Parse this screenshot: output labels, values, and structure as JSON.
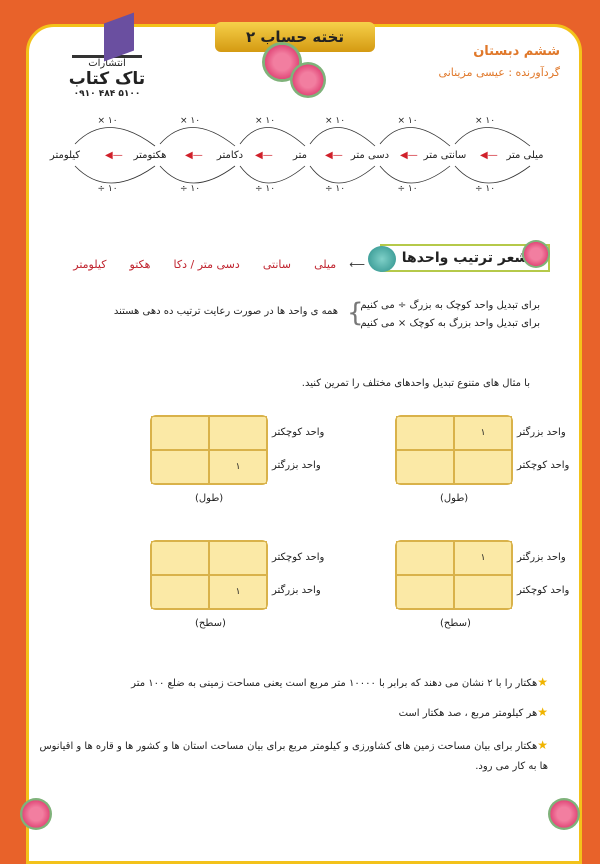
{
  "header": {
    "publisher_label": "انتشارات",
    "publisher_name": "تاک کتاب",
    "phone": "۰۹۱۰ ۴۸۴ ۵۱۰۰",
    "title": "تخته حساب ۲",
    "grade": "ششم دبستان",
    "author": "گردآورنده : عیسی مزینانی"
  },
  "chain": {
    "units": [
      "میلی متر",
      "سانتی متر",
      "دسی متر",
      "متر",
      "دکامتر",
      "هکتومتر",
      "کیلومتر"
    ],
    "multiply_label": "× ۱۰",
    "divide_label": "÷ ۱۰"
  },
  "poem": {
    "title": "شعر ترتیب واحدها",
    "items": [
      "میلی",
      "سانتی",
      "دسی متر / دکا",
      "هکتو",
      "کیلومتر"
    ]
  },
  "rules": {
    "line1": "برای تبدیل واحد کوچک به بزرگ ÷ می کنیم",
    "line2": "برای تبدیل واحد بزرگ به کوچک × می کنیم",
    "note": "همه ی واحد ها در صورت رعایت ترتیب ده دهی هستند"
  },
  "instruction": "با مثال های متنوع تبدیل واحدهای مختلف را تمرین کنید.",
  "tables": [
    {
      "top": "واحد بزرگتر",
      "bottom": "واحد کوچکتر",
      "value": "۱",
      "value_row": "top",
      "caption": "(طول)"
    },
    {
      "top": "واحد کوچکتر",
      "bottom": "واحد بزرگتر",
      "value": "۱",
      "value_row": "bottom",
      "caption": "(طول)"
    },
    {
      "top": "واحد بزرگتر",
      "bottom": "واحد کوچکتر",
      "value": "۱",
      "value_row": "top",
      "caption": "(سطح)"
    },
    {
      "top": "واحد کوچکتر",
      "bottom": "واحد بزرگتر",
      "value": "۱",
      "value_row": "bottom",
      "caption": "(سطح)"
    }
  ],
  "notes": [
    "هکتار را با ۲ نشان می دهند که برابر با ۱۰۰۰۰ متر مربع است یعنی مساحت زمینی به ضلع ۱۰۰ متر",
    "هر کیلومتر مربع ، صد هکتار است",
    "هکتار برای بیان مساحت زمین های کشاورزی و کیلومتر مربع برای بیان مساحت استان ها و کشور ها و قاره ها و اقیانوس ها به کار می رود."
  ],
  "colors": {
    "border": "#e8622a",
    "frame": "#f3c21a",
    "accent": "#e0782a",
    "poem": "#c0242f",
    "table": "#fbe9a6"
  }
}
